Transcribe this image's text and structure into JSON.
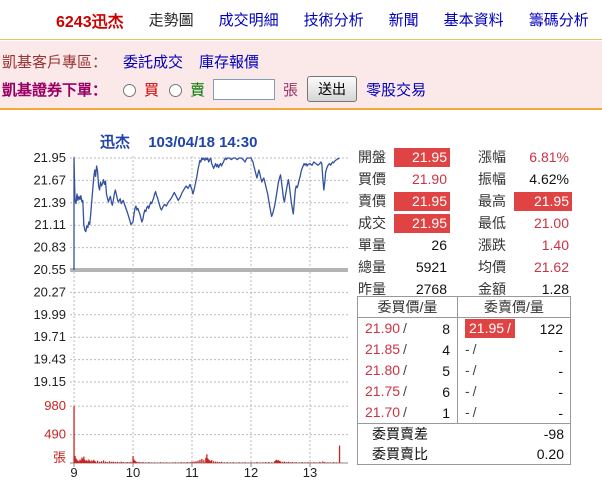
{
  "nav": {
    "stock": "6243迅杰",
    "items": [
      "走勢圖",
      "成交明細",
      "技術分析",
      "新聞",
      "基本資料",
      "籌碼分析"
    ]
  },
  "broker": {
    "area_label": "凱基客戶專區：",
    "link_orders": "委託成交",
    "link_inventory": "庫存報價",
    "order_label": "凱基證券下單：",
    "buy_label": "買",
    "sell_label": "賣",
    "qty_unit": "張",
    "submit_label": "送出",
    "oddlot_label": "零股交易",
    "qty_value": ""
  },
  "chart_data": {
    "type": "line",
    "title": "迅杰",
    "datetime": "103/04/18 14:30",
    "x_axis": {
      "ticks": [
        9,
        10,
        11,
        12,
        13
      ],
      "range_minutes": [
        0,
        270
      ]
    },
    "price_axis": {
      "ticks": [
        21.95,
        21.67,
        21.39,
        21.11,
        20.83,
        20.55,
        20.27,
        19.99,
        19.71,
        19.43,
        19.15
      ],
      "prev_close": 20.55,
      "limit_up": 21.95,
      "limit_down": 19.15
    },
    "volume_axis": {
      "ticks": [
        980,
        490
      ],
      "unit": "張"
    },
    "price_series": [
      [
        0,
        20.55
      ],
      [
        0,
        21.95
      ],
      [
        1,
        21.42
      ],
      [
        2,
        21.38
      ],
      [
        3,
        21.5
      ],
      [
        4,
        21.42
      ],
      [
        5,
        21.47
      ],
      [
        6,
        21.43
      ],
      [
        7,
        21.48
      ],
      [
        8,
        21.4
      ],
      [
        9,
        21.42
      ],
      [
        10,
        21.12
      ],
      [
        11,
        21.05
      ],
      [
        12,
        21.03
      ],
      [
        13,
        21.1
      ],
      [
        14,
        21.08
      ],
      [
        15,
        21.15
      ],
      [
        16,
        21.12
      ],
      [
        17,
        21.25
      ],
      [
        18,
        21.4
      ],
      [
        19,
        21.55
      ],
      [
        20,
        21.7
      ],
      [
        21,
        21.8
      ],
      [
        22,
        21.72
      ],
      [
        23,
        21.85
      ],
      [
        24,
        21.78
      ],
      [
        25,
        21.6
      ],
      [
        26,
        21.55
      ],
      [
        27,
        21.65
      ],
      [
        28,
        21.6
      ],
      [
        29,
        21.63
      ],
      [
        30,
        21.68
      ],
      [
        31,
        21.62
      ],
      [
        32,
        21.66
      ],
      [
        33,
        21.5
      ],
      [
        34,
        21.45
      ],
      [
        35,
        21.4
      ],
      [
        36,
        21.44
      ],
      [
        37,
        21.47
      ],
      [
        38,
        21.4
      ],
      [
        39,
        21.36
      ],
      [
        40,
        21.42
      ],
      [
        41,
        21.5
      ],
      [
        42,
        21.55
      ],
      [
        43,
        21.5
      ],
      [
        44,
        21.44
      ],
      [
        45,
        21.4
      ],
      [
        47,
        21.44
      ],
      [
        48,
        21.38
      ],
      [
        50,
        21.42
      ],
      [
        52,
        21.35
      ],
      [
        54,
        21.28
      ],
      [
        56,
        21.2
      ],
      [
        58,
        21.12
      ],
      [
        60,
        21.15
      ],
      [
        61,
        21.25
      ],
      [
        62,
        21.32
      ],
      [
        63,
        21.35
      ],
      [
        64,
        21.3
      ],
      [
        65,
        21.32
      ],
      [
        66,
        21.28
      ],
      [
        67,
        21.25
      ],
      [
        68,
        21.2
      ],
      [
        69,
        21.15
      ],
      [
        70,
        21.18
      ],
      [
        71,
        21.25
      ],
      [
        72,
        21.3
      ],
      [
        73,
        21.28
      ],
      [
        74,
        21.33
      ],
      [
        75,
        21.35
      ],
      [
        76,
        21.32
      ],
      [
        77,
        21.36
      ],
      [
        78,
        21.4
      ],
      [
        79,
        21.38
      ],
      [
        80,
        21.42
      ],
      [
        81,
        21.45
      ],
      [
        82,
        21.5
      ],
      [
        83,
        21.53
      ],
      [
        84,
        21.48
      ],
      [
        85,
        21.45
      ],
      [
        86,
        21.4
      ],
      [
        87,
        21.36
      ],
      [
        88,
        21.32
      ],
      [
        89,
        21.3
      ],
      [
        90,
        21.33
      ],
      [
        92,
        21.37
      ],
      [
        94,
        21.35
      ],
      [
        96,
        21.4
      ],
      [
        98,
        21.43
      ],
      [
        100,
        21.47
      ],
      [
        102,
        21.52
      ],
      [
        104,
        21.47
      ],
      [
        106,
        21.42
      ],
      [
        108,
        21.46
      ],
      [
        110,
        21.52
      ],
      [
        112,
        21.56
      ],
      [
        114,
        21.6
      ],
      [
        116,
        21.57
      ],
      [
        118,
        21.62
      ],
      [
        120,
        21.55
      ],
      [
        121,
        21.5
      ],
      [
        122,
        21.55
      ],
      [
        123,
        21.6
      ],
      [
        124,
        21.66
      ],
      [
        125,
        21.72
      ],
      [
        126,
        21.8
      ],
      [
        127,
        21.86
      ],
      [
        128,
        21.92
      ],
      [
        129,
        21.9
      ],
      [
        130,
        21.95
      ],
      [
        131,
        21.93
      ],
      [
        132,
        21.95
      ],
      [
        133,
        21.92
      ],
      [
        134,
        21.95
      ],
      [
        135,
        21.93
      ],
      [
        136,
        21.95
      ],
      [
        137,
        21.9
      ],
      [
        138,
        21.93
      ],
      [
        139,
        21.95
      ],
      [
        140,
        21.88
      ],
      [
        141,
        21.85
      ],
      [
        142,
        21.82
      ],
      [
        143,
        21.85
      ],
      [
        144,
        21.88
      ],
      [
        145,
        21.84
      ],
      [
        146,
        21.87
      ],
      [
        147,
        21.83
      ],
      [
        148,
        21.86
      ],
      [
        149,
        21.88
      ],
      [
        150,
        21.85
      ],
      [
        151,
        21.88
      ],
      [
        152,
        21.9
      ],
      [
        153,
        21.93
      ],
      [
        154,
        21.95
      ],
      [
        155,
        21.93
      ],
      [
        156,
        21.95
      ],
      [
        158,
        21.95
      ],
      [
        160,
        21.93
      ],
      [
        162,
        21.95
      ],
      [
        164,
        21.95
      ],
      [
        166,
        21.93
      ],
      [
        168,
        21.95
      ],
      [
        170,
        21.95
      ],
      [
        172,
        21.93
      ],
      [
        174,
        21.9
      ],
      [
        175,
        21.93
      ],
      [
        176,
        21.95
      ],
      [
        178,
        21.95
      ],
      [
        180,
        21.95
      ],
      [
        182,
        21.9
      ],
      [
        183,
        21.85
      ],
      [
        184,
        21.8
      ],
      [
        185,
        21.75
      ],
      [
        186,
        21.7
      ],
      [
        187,
        21.75
      ],
      [
        188,
        21.8
      ],
      [
        189,
        21.75
      ],
      [
        190,
        21.7
      ],
      [
        191,
        21.65
      ],
      [
        192,
        21.68
      ],
      [
        193,
        21.7
      ],
      [
        194,
        21.65
      ],
      [
        195,
        21.6
      ],
      [
        196,
        21.55
      ],
      [
        197,
        21.5
      ],
      [
        198,
        21.42
      ],
      [
        199,
        21.35
      ],
      [
        200,
        21.28
      ],
      [
        201,
        21.22
      ],
      [
        202,
        21.25
      ],
      [
        203,
        21.3
      ],
      [
        204,
        21.35
      ],
      [
        205,
        21.42
      ],
      [
        206,
        21.5
      ],
      [
        207,
        21.58
      ],
      [
        208,
        21.65
      ],
      [
        209,
        21.7
      ],
      [
        210,
        21.74
      ],
      [
        211,
        21.65
      ],
      [
        212,
        21.55
      ],
      [
        213,
        21.45
      ],
      [
        214,
        21.4
      ],
      [
        215,
        21.48
      ],
      [
        216,
        21.55
      ],
      [
        217,
        21.62
      ],
      [
        218,
        21.68
      ],
      [
        219,
        21.6
      ],
      [
        220,
        21.5
      ],
      [
        221,
        21.4
      ],
      [
        222,
        21.32
      ],
      [
        223,
        21.25
      ],
      [
        224,
        21.4
      ],
      [
        225,
        21.55
      ],
      [
        226,
        21.6
      ],
      [
        227,
        21.58
      ],
      [
        228,
        21.62
      ],
      [
        229,
        21.68
      ],
      [
        230,
        21.72
      ],
      [
        231,
        21.78
      ],
      [
        232,
        21.82
      ],
      [
        233,
        21.85
      ],
      [
        234,
        21.88
      ],
      [
        235,
        21.86
      ],
      [
        236,
        21.88
      ],
      [
        237,
        21.85
      ],
      [
        238,
        21.87
      ],
      [
        240,
        21.88
      ],
      [
        242,
        21.86
      ],
      [
        244,
        21.9
      ],
      [
        246,
        21.88
      ],
      [
        248,
        21.86
      ],
      [
        250,
        21.88
      ],
      [
        251,
        21.9
      ],
      [
        252,
        21.88
      ],
      [
        253,
        21.7
      ],
      [
        254,
        21.55
      ],
      [
        255,
        21.65
      ],
      [
        256,
        21.78
      ],
      [
        257,
        21.82
      ],
      [
        258,
        21.85
      ],
      [
        259,
        21.87
      ],
      [
        260,
        21.88
      ],
      [
        261,
        21.86
      ],
      [
        262,
        21.88
      ],
      [
        263,
        21.9
      ],
      [
        264,
        21.89
      ],
      [
        265,
        21.91
      ],
      [
        266,
        21.92
      ],
      [
        267,
        21.93
      ],
      [
        268,
        21.94
      ],
      [
        269,
        21.94
      ],
      [
        270,
        21.95
      ]
    ],
    "volume_series": [
      [
        0,
        980
      ],
      [
        1,
        120
      ],
      [
        2,
        80
      ],
      [
        3,
        55
      ],
      [
        4,
        40
      ],
      [
        5,
        30
      ],
      [
        6,
        60
      ],
      [
        7,
        45
      ],
      [
        8,
        95
      ],
      [
        9,
        70
      ],
      [
        10,
        110
      ],
      [
        11,
        55
      ],
      [
        12,
        35
      ],
      [
        13,
        50
      ],
      [
        14,
        30
      ],
      [
        15,
        60
      ],
      [
        16,
        40
      ],
      [
        17,
        25
      ],
      [
        18,
        45
      ],
      [
        19,
        30
      ],
      [
        20,
        55
      ],
      [
        21,
        35
      ],
      [
        22,
        25
      ],
      [
        24,
        40
      ],
      [
        26,
        20
      ],
      [
        28,
        30
      ],
      [
        30,
        45
      ],
      [
        32,
        25
      ],
      [
        34,
        15
      ],
      [
        36,
        30
      ],
      [
        38,
        20
      ],
      [
        40,
        25
      ],
      [
        42,
        15
      ],
      [
        44,
        20
      ],
      [
        46,
        12
      ],
      [
        48,
        25
      ],
      [
        50,
        15
      ],
      [
        52,
        10
      ],
      [
        54,
        18
      ],
      [
        56,
        12
      ],
      [
        58,
        20
      ],
      [
        60,
        120
      ],
      [
        61,
        60
      ],
      [
        62,
        40
      ],
      [
        63,
        25
      ],
      [
        64,
        15
      ],
      [
        66,
        20
      ],
      [
        68,
        12
      ],
      [
        70,
        18
      ],
      [
        73,
        10
      ],
      [
        76,
        15
      ],
      [
        79,
        10
      ],
      [
        82,
        12
      ],
      [
        85,
        8
      ],
      [
        88,
        14
      ],
      [
        91,
        10
      ],
      [
        94,
        12
      ],
      [
        97,
        8
      ],
      [
        100,
        10
      ],
      [
        103,
        14
      ],
      [
        106,
        10
      ],
      [
        109,
        16
      ],
      [
        112,
        12
      ],
      [
        115,
        18
      ],
      [
        118,
        14
      ],
      [
        120,
        20
      ],
      [
        122,
        25
      ],
      [
        124,
        30
      ],
      [
        126,
        40
      ],
      [
        128,
        55
      ],
      [
        130,
        70
      ],
      [
        132,
        50
      ],
      [
        134,
        90
      ],
      [
        135,
        150
      ],
      [
        136,
        80
      ],
      [
        137,
        60
      ],
      [
        138,
        45
      ],
      [
        139,
        35
      ],
      [
        140,
        50
      ],
      [
        142,
        30
      ],
      [
        144,
        25
      ],
      [
        146,
        20
      ],
      [
        148,
        15
      ],
      [
        150,
        22
      ],
      [
        153,
        12
      ],
      [
        156,
        16
      ],
      [
        159,
        10
      ],
      [
        162,
        14
      ],
      [
        165,
        8
      ],
      [
        168,
        12
      ],
      [
        171,
        10
      ],
      [
        174,
        14
      ],
      [
        177,
        8
      ],
      [
        180,
        12
      ],
      [
        183,
        10
      ],
      [
        186,
        15
      ],
      [
        189,
        10
      ],
      [
        192,
        12
      ],
      [
        195,
        15
      ],
      [
        198,
        18
      ],
      [
        201,
        12
      ],
      [
        204,
        30
      ],
      [
        205,
        45
      ],
      [
        206,
        55
      ],
      [
        207,
        40
      ],
      [
        208,
        50
      ],
      [
        209,
        35
      ],
      [
        210,
        28
      ],
      [
        212,
        20
      ],
      [
        214,
        25
      ],
      [
        216,
        15
      ],
      [
        218,
        20
      ],
      [
        220,
        12
      ],
      [
        222,
        16
      ],
      [
        224,
        10
      ],
      [
        226,
        14
      ],
      [
        229,
        10
      ],
      [
        232,
        18
      ],
      [
        235,
        12
      ],
      [
        238,
        15
      ],
      [
        241,
        10
      ],
      [
        244,
        14
      ],
      [
        247,
        10
      ],
      [
        250,
        20
      ],
      [
        253,
        28
      ],
      [
        255,
        15
      ],
      [
        258,
        12
      ],
      [
        261,
        10
      ],
      [
        264,
        15
      ],
      [
        267,
        10
      ],
      [
        270,
        300
      ]
    ]
  },
  "quote": {
    "rows": [
      {
        "l1": "開盤",
        "v1": "21.95",
        "l2": "漲幅",
        "v2": "6.81%"
      },
      {
        "l1": "買價",
        "v1": "21.90",
        "l2": "振幅",
        "v2": "4.62%"
      },
      {
        "l1": "賣價",
        "v1": "21.95",
        "l2": "最高",
        "v2": "21.95"
      },
      {
        "l1": "成交",
        "v1": "21.95",
        "l2": "最低",
        "v2": "21.00"
      },
      {
        "l1": "單量",
        "v1": "26",
        "l2": "漲跌",
        "v2": "1.40"
      },
      {
        "l1": "總量",
        "v1": "5921",
        "l2": "均價",
        "v2": "21.62"
      },
      {
        "l1": "昨量",
        "v1": "2768",
        "l2": "金額",
        "v2": "1.28"
      }
    ]
  },
  "depth": {
    "bid_header": "委買價/量",
    "ask_header": "委賣價/量",
    "sep": "/",
    "bids": [
      {
        "price": "21.90",
        "qty": "8"
      },
      {
        "price": "21.85",
        "qty": "4"
      },
      {
        "price": "21.80",
        "qty": "5"
      },
      {
        "price": "21.75",
        "qty": "6"
      },
      {
        "price": "21.70",
        "qty": "1"
      }
    ],
    "asks": [
      {
        "price": "21.95",
        "qty": "122"
      },
      {
        "price": "-",
        "qty": "-"
      },
      {
        "price": "-",
        "qty": "-"
      },
      {
        "price": "-",
        "qty": "-"
      },
      {
        "price": "-",
        "qty": "-"
      }
    ],
    "diff_label": "委買賣差",
    "diff_value": "-98",
    "ratio_label": "委買賣比",
    "ratio_value": "0.20"
  },
  "colors": {
    "accent_red": "#CC0000",
    "link_blue": "#0000BB",
    "panel_pink": "#FBE8E8",
    "border_gold": "#E3C565",
    "border_orange": "#F5A93B",
    "title_blue": "#2244AA",
    "price_line": "#33519E",
    "volume_red": "#CC2222",
    "up_bg": "#E04343",
    "up_text": "#CC3344",
    "grid_gray": "#BBBBBB",
    "prev_close_gray": "#B4B4B4",
    "axis_gray": "#888888",
    "tick_text": "#222222"
  }
}
